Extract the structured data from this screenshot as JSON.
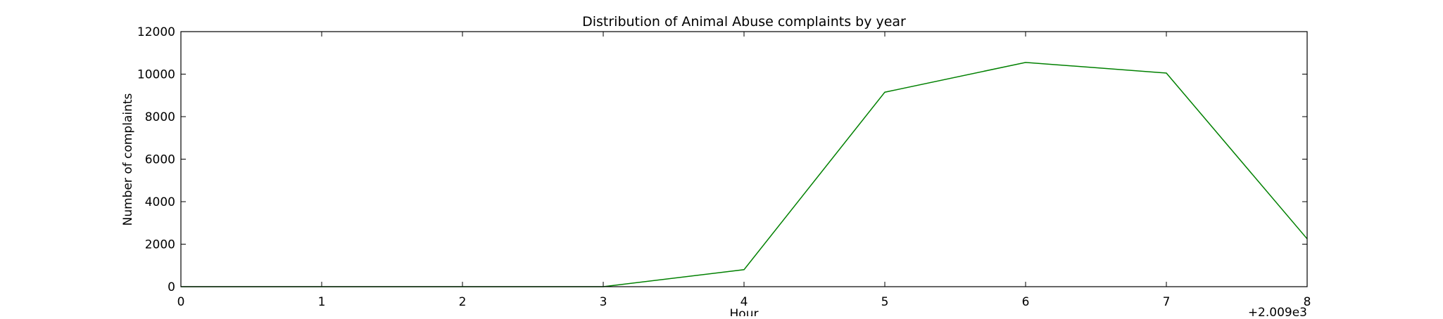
{
  "chart_data": {
    "type": "line",
    "title": "Distribution of  Animal Abuse complaints by year",
    "xlabel": "Hour",
    "ylabel": "Number of complaints",
    "x_offset_label": "+2.009e3",
    "x": [
      2009,
      2010,
      2011,
      2012,
      2013,
      2014,
      2015,
      2016,
      2017
    ],
    "x_tick_labels": [
      "0",
      "1",
      "2",
      "3",
      "4",
      "5",
      "6",
      "7",
      "8"
    ],
    "series": [
      {
        "values": [
          0,
          0,
          0,
          0,
          800,
          9150,
          10550,
          10050,
          2250
        ],
        "color": "#008000"
      }
    ],
    "xlim": [
      2009,
      2017
    ],
    "ylim": [
      0,
      12000
    ],
    "y_ticks": [
      0,
      2000,
      4000,
      6000,
      8000,
      10000,
      12000
    ],
    "y_tick_labels": [
      "0",
      "2000",
      "4000",
      "6000",
      "8000",
      "10000",
      "12000"
    ],
    "grid": false,
    "legend": "none"
  }
}
